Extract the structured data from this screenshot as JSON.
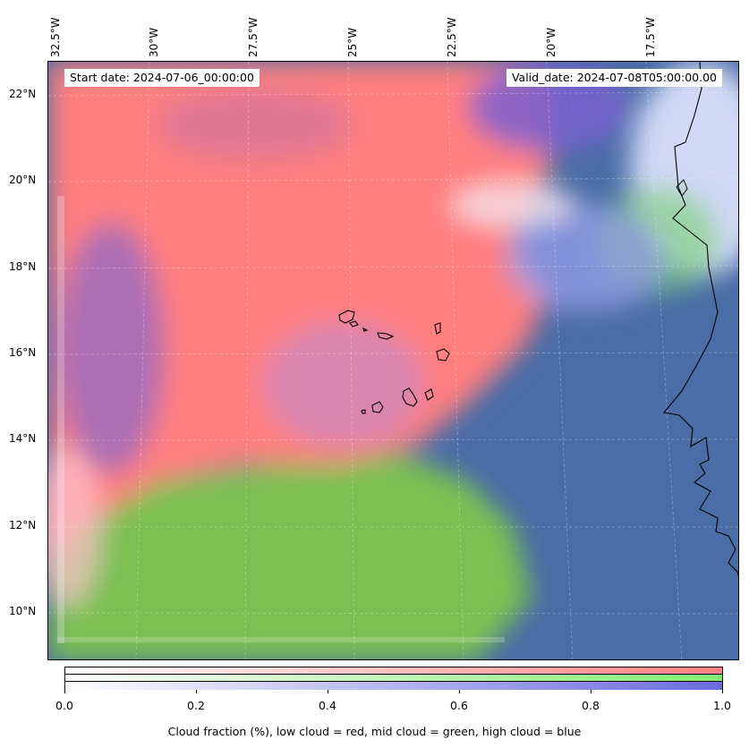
{
  "map": {
    "lon_labels": [
      "32.5°W",
      "30°W",
      "27.5°W",
      "25°W",
      "22.5°W",
      "20°W",
      "17.5°W"
    ],
    "lat_labels": [
      "22°N",
      "20°N",
      "18°N",
      "16°N",
      "14°N",
      "12°N",
      "10°N"
    ],
    "start_date": "Start date: 2024-07-06_00:00:00",
    "valid_date": "Valid_date: 2024-07-08T05:00:00.00",
    "colors": {
      "low_cloud": "#ff7f7f",
      "mid_cloud": "#7fd45f",
      "high_cloud": "#5f6fd8",
      "ocean_base": "#4a6fa8"
    }
  },
  "colorbar": {
    "ticks": [
      "0.0",
      "0.2",
      "0.4",
      "0.6",
      "0.8",
      "1.0"
    ],
    "caption": "Cloud fraction (%), low cloud = red, mid cloud = green, high cloud = blue"
  }
}
